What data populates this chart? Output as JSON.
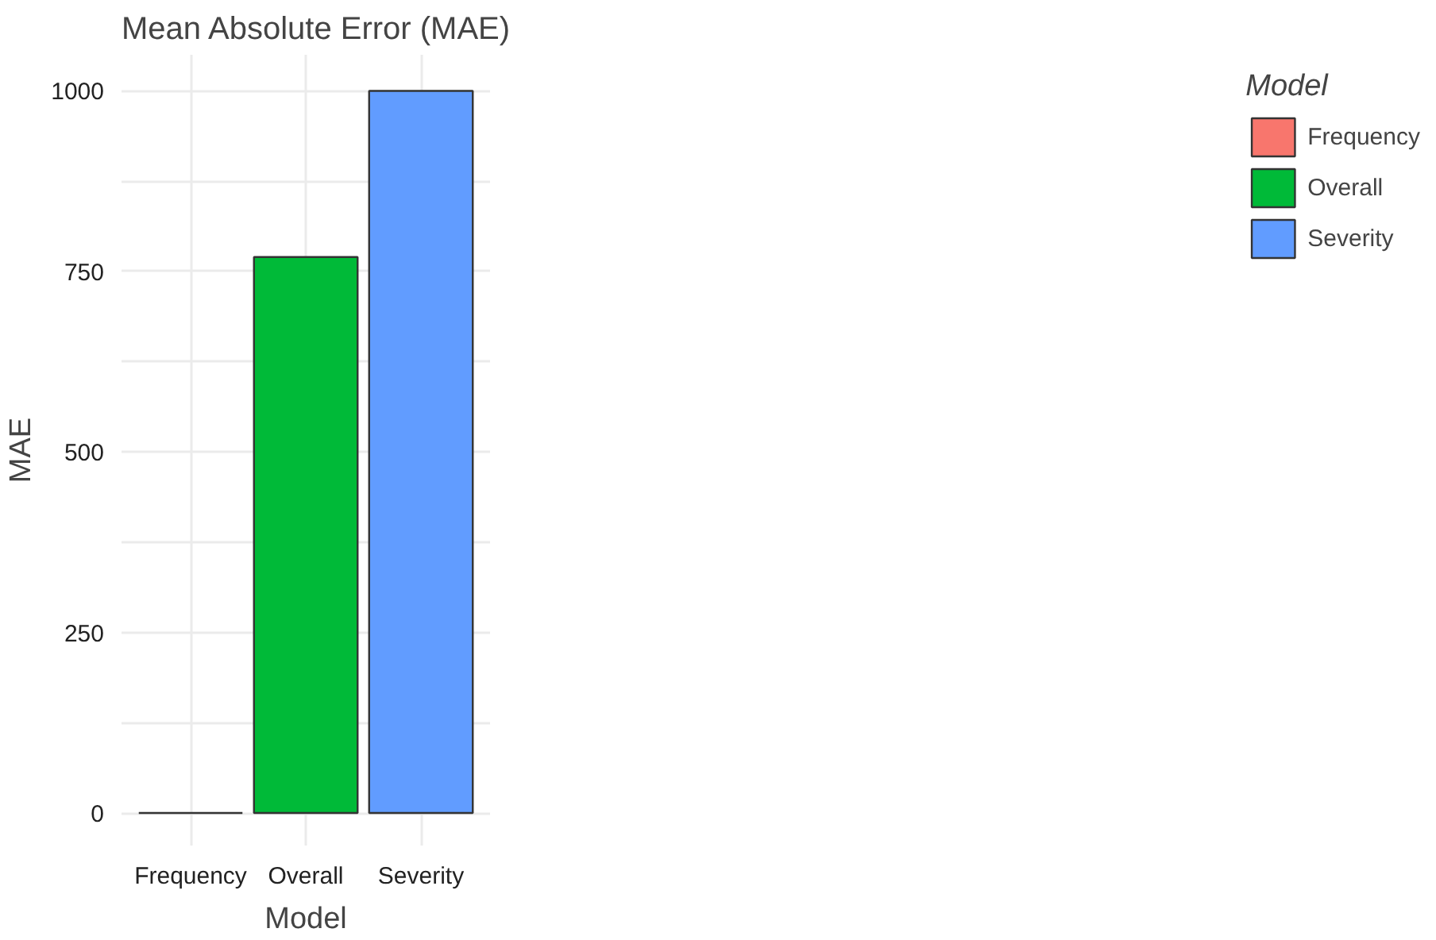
{
  "chart_data": {
    "type": "bar",
    "title": "Mean Absolute Error (MAE)",
    "xlabel": "Model",
    "ylabel": "MAE",
    "legend_title": "Model",
    "categories": [
      "Frequency",
      "Overall",
      "Severity"
    ],
    "series": [
      {
        "name": "Frequency",
        "color": "#f8766d",
        "values": [
          0,
          null,
          null
        ]
      },
      {
        "name": "Overall",
        "color": "#00ba38",
        "values": [
          null,
          770,
          null
        ]
      },
      {
        "name": "Severity",
        "color": "#619cff",
        "values": [
          null,
          null,
          1000
        ]
      }
    ],
    "ylim": [
      -45,
      1050
    ],
    "yticks": [
      0,
      {
        "value": 125,
        "label": null
      },
      250,
      {
        "value": 375,
        "label": null
      },
      500,
      {
        "value": 625,
        "label": null
      },
      750,
      {
        "value": 875,
        "label": null
      },
      1000
    ],
    "grid": true,
    "legend": "right"
  }
}
